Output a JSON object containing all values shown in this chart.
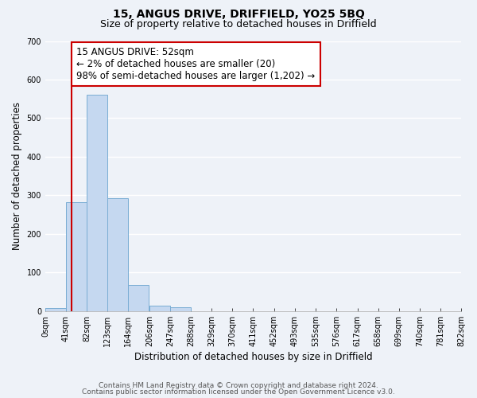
{
  "title": "15, ANGUS DRIVE, DRIFFIELD, YO25 5BQ",
  "subtitle": "Size of property relative to detached houses in Driffield",
  "xlabel": "Distribution of detached houses by size in Driffield",
  "ylabel": "Number of detached properties",
  "bar_left_edges": [
    0,
    41,
    82,
    123,
    164,
    206,
    247,
    288,
    329,
    370,
    411,
    452,
    493,
    535,
    576,
    617,
    658,
    699,
    740,
    781
  ],
  "bar_heights": [
    7,
    282,
    560,
    293,
    67,
    15,
    9,
    0,
    0,
    0,
    0,
    0,
    0,
    0,
    0,
    0,
    0,
    0,
    0,
    0
  ],
  "bin_width": 41,
  "bar_color": "#c5d8f0",
  "bar_edge_color": "#7aadd4",
  "x_tick_labels": [
    "0sqm",
    "41sqm",
    "82sqm",
    "123sqm",
    "164sqm",
    "206sqm",
    "247sqm",
    "288sqm",
    "329sqm",
    "370sqm",
    "411sqm",
    "452sqm",
    "493sqm",
    "535sqm",
    "576sqm",
    "617sqm",
    "658sqm",
    "699sqm",
    "740sqm",
    "781sqm",
    "822sqm"
  ],
  "x_tick_positions": [
    0,
    41,
    82,
    123,
    164,
    206,
    247,
    288,
    329,
    370,
    411,
    452,
    493,
    535,
    576,
    617,
    658,
    699,
    740,
    781,
    822
  ],
  "ylim": [
    0,
    700
  ],
  "xlim": [
    0,
    822
  ],
  "yticks": [
    0,
    100,
    200,
    300,
    400,
    500,
    600,
    700
  ],
  "property_line_x": 52,
  "property_line_color": "#cc0000",
  "annotation_text": "15 ANGUS DRIVE: 52sqm\n← 2% of detached houses are smaller (20)\n98% of semi-detached houses are larger (1,202) →",
  "annotation_box_color": "#ffffff",
  "annotation_box_edge_color": "#cc0000",
  "footer_line1": "Contains HM Land Registry data © Crown copyright and database right 2024.",
  "footer_line2": "Contains public sector information licensed under the Open Government Licence v3.0.",
  "background_color": "#eef2f8",
  "grid_color": "#ffffff",
  "title_fontsize": 10,
  "subtitle_fontsize": 9,
  "axis_label_fontsize": 8.5,
  "tick_fontsize": 7,
  "annotation_fontsize": 8.5,
  "footer_fontsize": 6.5
}
